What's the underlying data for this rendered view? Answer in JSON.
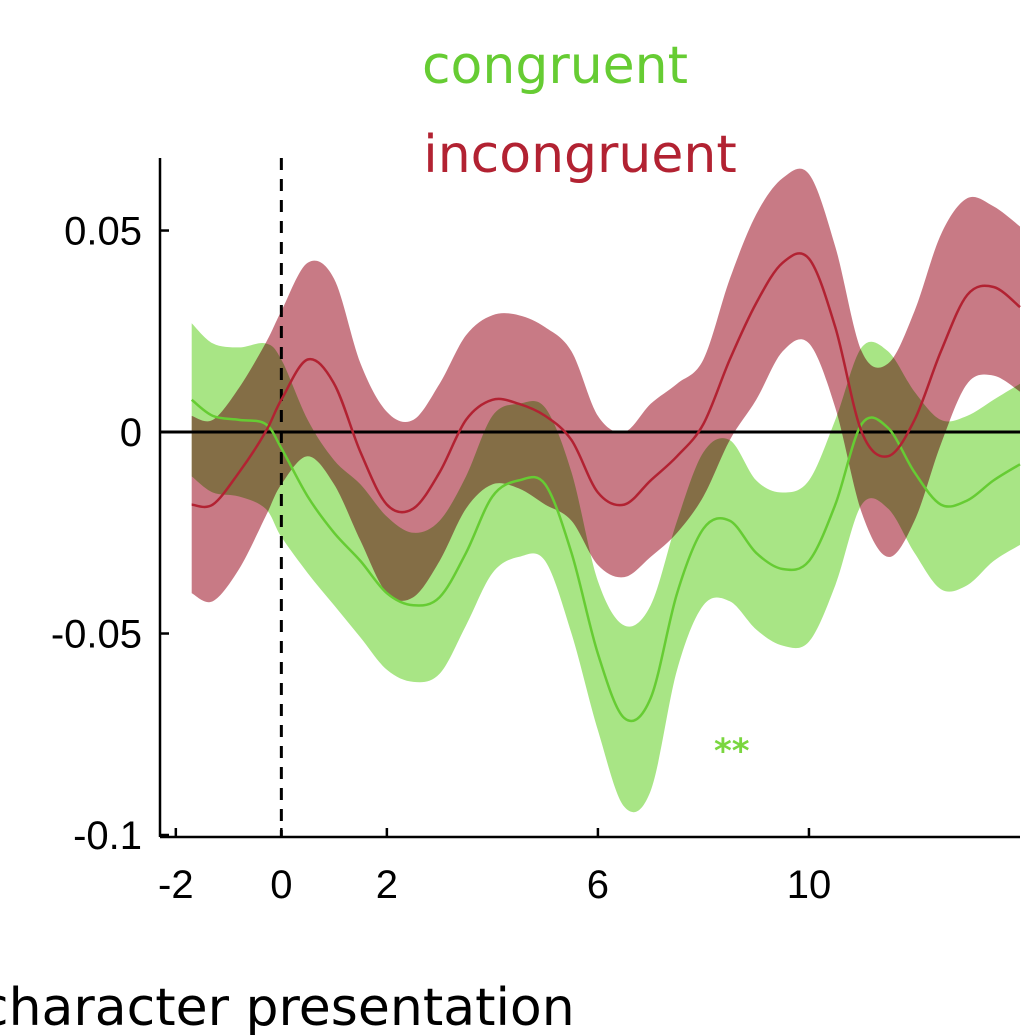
{
  "chart_data": {
    "type": "line",
    "title": "",
    "xlabel": "character presentation",
    "ylabel": "",
    "xlim": [
      -2.3,
      14
    ],
    "ylim": [
      -0.1,
      0.068
    ],
    "xticks": [
      -2,
      0,
      2,
      6,
      10
    ],
    "xtick_labels": [
      "-2",
      "0",
      "2",
      "6",
      "10"
    ],
    "yticks": [
      -0.1,
      -0.05,
      0,
      0.05
    ],
    "ytick_labels": [
      "-0.1",
      "-0.05",
      "0",
      "0.05"
    ],
    "grid": false,
    "legend": "top-center",
    "reference_lines": {
      "horizontal_y": 0,
      "vertical_dashed_x": 0
    },
    "annotations": [
      {
        "text": "**",
        "x": 8.2,
        "y": -0.079,
        "color": "#7ad63f"
      }
    ],
    "series": [
      {
        "name": "congruent",
        "color": "#66cc33",
        "band_color": "#a8e585",
        "x": [
          -1.7,
          -1.3,
          -0.8,
          -0.3,
          0,
          0.5,
          1,
          1.5,
          2,
          2.5,
          3,
          3.5,
          4,
          4.5,
          5,
          5.5,
          6,
          6.5,
          7,
          7.5,
          8,
          8.5,
          9,
          9.5,
          10,
          10.5,
          11,
          11.5,
          12,
          12.5,
          13,
          13.5,
          14
        ],
        "mean": [
          0.008,
          0.004,
          0.003,
          0.002,
          -0.004,
          -0.016,
          -0.025,
          -0.032,
          -0.04,
          -0.043,
          -0.041,
          -0.03,
          -0.016,
          -0.012,
          -0.013,
          -0.03,
          -0.055,
          -0.071,
          -0.066,
          -0.04,
          -0.024,
          -0.022,
          -0.03,
          -0.034,
          -0.032,
          -0.018,
          0.002,
          0.001,
          -0.01,
          -0.018,
          -0.017,
          -0.012,
          -0.008
        ],
        "upper": [
          0.027,
          0.022,
          0.021,
          0.022,
          0.018,
          0.003,
          -0.007,
          -0.013,
          -0.021,
          -0.025,
          -0.022,
          -0.011,
          0.004,
          0.007,
          0.006,
          -0.01,
          -0.037,
          -0.048,
          -0.043,
          -0.022,
          -0.005,
          -0.002,
          -0.012,
          -0.015,
          -0.012,
          0.003,
          0.021,
          0.02,
          0.01,
          0.003,
          0.004,
          0.008,
          0.012
        ],
        "lower": [
          -0.011,
          -0.015,
          -0.016,
          -0.019,
          -0.026,
          -0.035,
          -0.043,
          -0.051,
          -0.059,
          -0.062,
          -0.06,
          -0.048,
          -0.035,
          -0.031,
          -0.032,
          -0.05,
          -0.074,
          -0.093,
          -0.089,
          -0.059,
          -0.043,
          -0.042,
          -0.049,
          -0.053,
          -0.052,
          -0.038,
          -0.018,
          -0.019,
          -0.03,
          -0.039,
          -0.038,
          -0.032,
          -0.028
        ]
      },
      {
        "name": "incongruent",
        "color": "#b22232",
        "band_color": "#c87a85",
        "x": [
          -1.7,
          -1.3,
          -0.8,
          -0.3,
          0,
          0.5,
          1,
          1.5,
          2,
          2.5,
          3,
          3.5,
          4,
          4.5,
          5,
          5.5,
          6,
          6.5,
          7,
          7.5,
          8,
          8.5,
          9,
          9.5,
          10,
          10.5,
          11,
          11.5,
          12,
          12.5,
          13,
          13.5,
          14
        ],
        "mean": [
          -0.018,
          -0.018,
          -0.01,
          0.0,
          0.008,
          0.018,
          0.012,
          -0.005,
          -0.018,
          -0.019,
          -0.01,
          0.003,
          0.008,
          0.007,
          0.004,
          -0.002,
          -0.015,
          -0.018,
          -0.012,
          -0.006,
          0.002,
          0.018,
          0.032,
          0.042,
          0.043,
          0.026,
          0.0,
          -0.006,
          0.003,
          0.02,
          0.034,
          0.036,
          0.031
        ],
        "upper": [
          0.004,
          0.003,
          0.011,
          0.022,
          0.03,
          0.042,
          0.038,
          0.017,
          0.005,
          0.003,
          0.012,
          0.024,
          0.029,
          0.029,
          0.026,
          0.02,
          0.004,
          0.0,
          0.007,
          0.012,
          0.018,
          0.038,
          0.054,
          0.063,
          0.064,
          0.046,
          0.02,
          0.017,
          0.03,
          0.049,
          0.058,
          0.056,
          0.051
        ],
        "lower": [
          -0.04,
          -0.042,
          -0.034,
          -0.021,
          -0.013,
          -0.006,
          -0.013,
          -0.027,
          -0.04,
          -0.041,
          -0.032,
          -0.019,
          -0.013,
          -0.014,
          -0.018,
          -0.022,
          -0.033,
          -0.036,
          -0.031,
          -0.025,
          -0.016,
          -0.002,
          0.008,
          0.02,
          0.022,
          0.006,
          -0.02,
          -0.031,
          -0.022,
          -0.003,
          0.012,
          0.014,
          0.01
        ]
      }
    ]
  }
}
